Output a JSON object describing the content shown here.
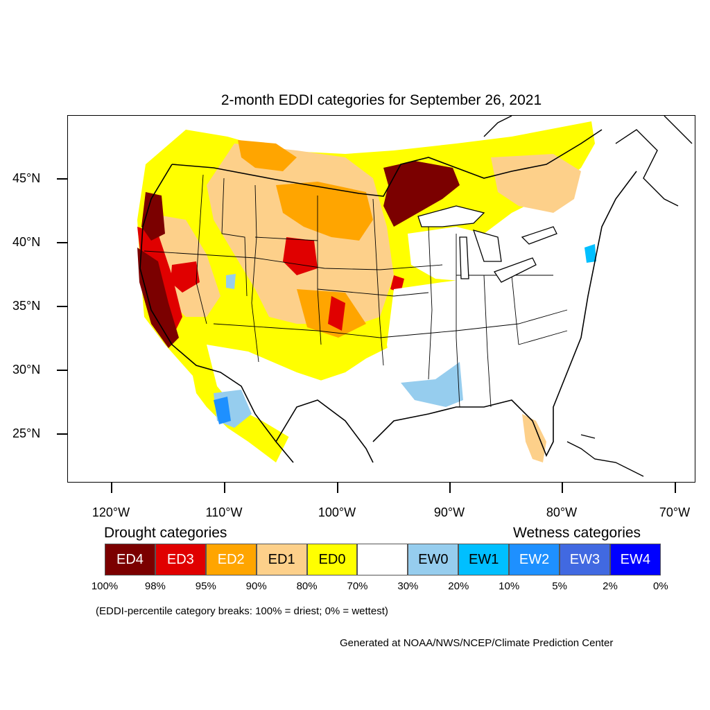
{
  "title": "2-month EDDI categories for September 26, 2021",
  "map": {
    "lat_labels": [
      "45°N",
      "40°N",
      "35°N",
      "30°N",
      "25°N"
    ],
    "lon_labels": [
      "120°W",
      "110°W",
      "100°W",
      "90°W",
      "80°W",
      "70°W"
    ]
  },
  "legend": {
    "drought_title": "Drought categories",
    "wetness_title": "Wetness categories",
    "categories": [
      {
        "label": "ED4",
        "color": "#7b0000",
        "text_color": "#ffffff"
      },
      {
        "label": "ED3",
        "color": "#e00000",
        "text_color": "#ffffff"
      },
      {
        "label": "ED2",
        "color": "#ffa500",
        "text_color": "#ffffff"
      },
      {
        "label": "ED1",
        "color": "#fdd08a",
        "text_color": "#000000"
      },
      {
        "label": "ED0",
        "color": "#ffff00",
        "text_color": "#000000"
      },
      {
        "label": "",
        "color": "#ffffff",
        "text_color": "#000000"
      },
      {
        "label": "EW0",
        "color": "#96cdee",
        "text_color": "#000000"
      },
      {
        "label": "EW1",
        "color": "#00bfff",
        "text_color": "#000000"
      },
      {
        "label": "EW2",
        "color": "#1e90ff",
        "text_color": "#ffffff"
      },
      {
        "label": "EW3",
        "color": "#4169e1",
        "text_color": "#ffffff"
      },
      {
        "label": "EW4",
        "color": "#0000ff",
        "text_color": "#ffffff"
      }
    ],
    "breakpoints": [
      "100%",
      "98%",
      "95%",
      "90%",
      "80%",
      "70%",
      "30%",
      "20%",
      "10%",
      "5%",
      "2%",
      "0%"
    ],
    "note": "(EDDI-percentile category breaks: 100% = driest; 0% = wettest)"
  },
  "credit": "Generated at NOAA/NWS/NCEP/Climate Prediction Center"
}
